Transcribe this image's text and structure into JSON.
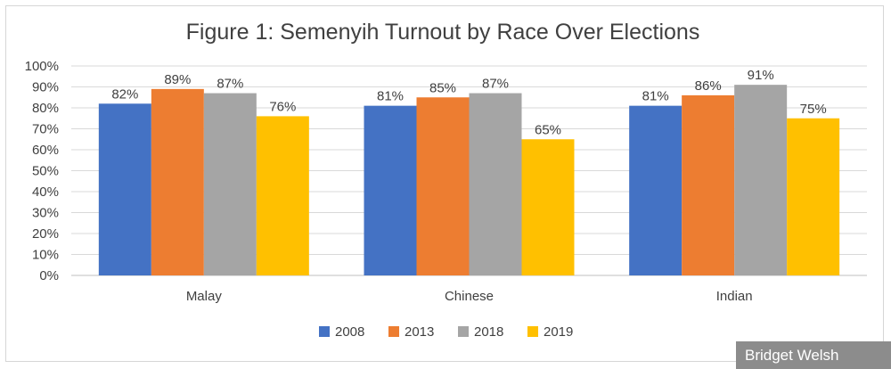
{
  "chart_data": {
    "type": "bar",
    "title": "Figure 1: Semenyih Turnout by Race Over Elections",
    "categories": [
      "Malay",
      "Chinese",
      "Indian"
    ],
    "series": [
      {
        "name": "2008",
        "color": "#4472c4",
        "values": [
          82,
          81,
          81
        ],
        "labels": [
          "82%",
          "81%",
          "81%"
        ]
      },
      {
        "name": "2013",
        "color": "#ed7d31",
        "values": [
          89,
          85,
          86
        ],
        "labels": [
          "89%",
          "85%",
          "86%"
        ]
      },
      {
        "name": "2018",
        "color": "#a5a5a5",
        "values": [
          87,
          87,
          91
        ],
        "labels": [
          "87%",
          "87%",
          "91%"
        ]
      },
      {
        "name": "2019",
        "color": "#ffc000",
        "values": [
          76,
          65,
          75
        ],
        "labels": [
          "76%",
          "65%",
          "75%"
        ]
      }
    ],
    "y_ticks": [
      "0%",
      "10%",
      "20%",
      "30%",
      "40%",
      "50%",
      "60%",
      "70%",
      "80%",
      "90%",
      "100%"
    ],
    "ylim": [
      0,
      100
    ],
    "grid": true,
    "legend_position": "bottom"
  },
  "watermark": "Bridget Welsh"
}
